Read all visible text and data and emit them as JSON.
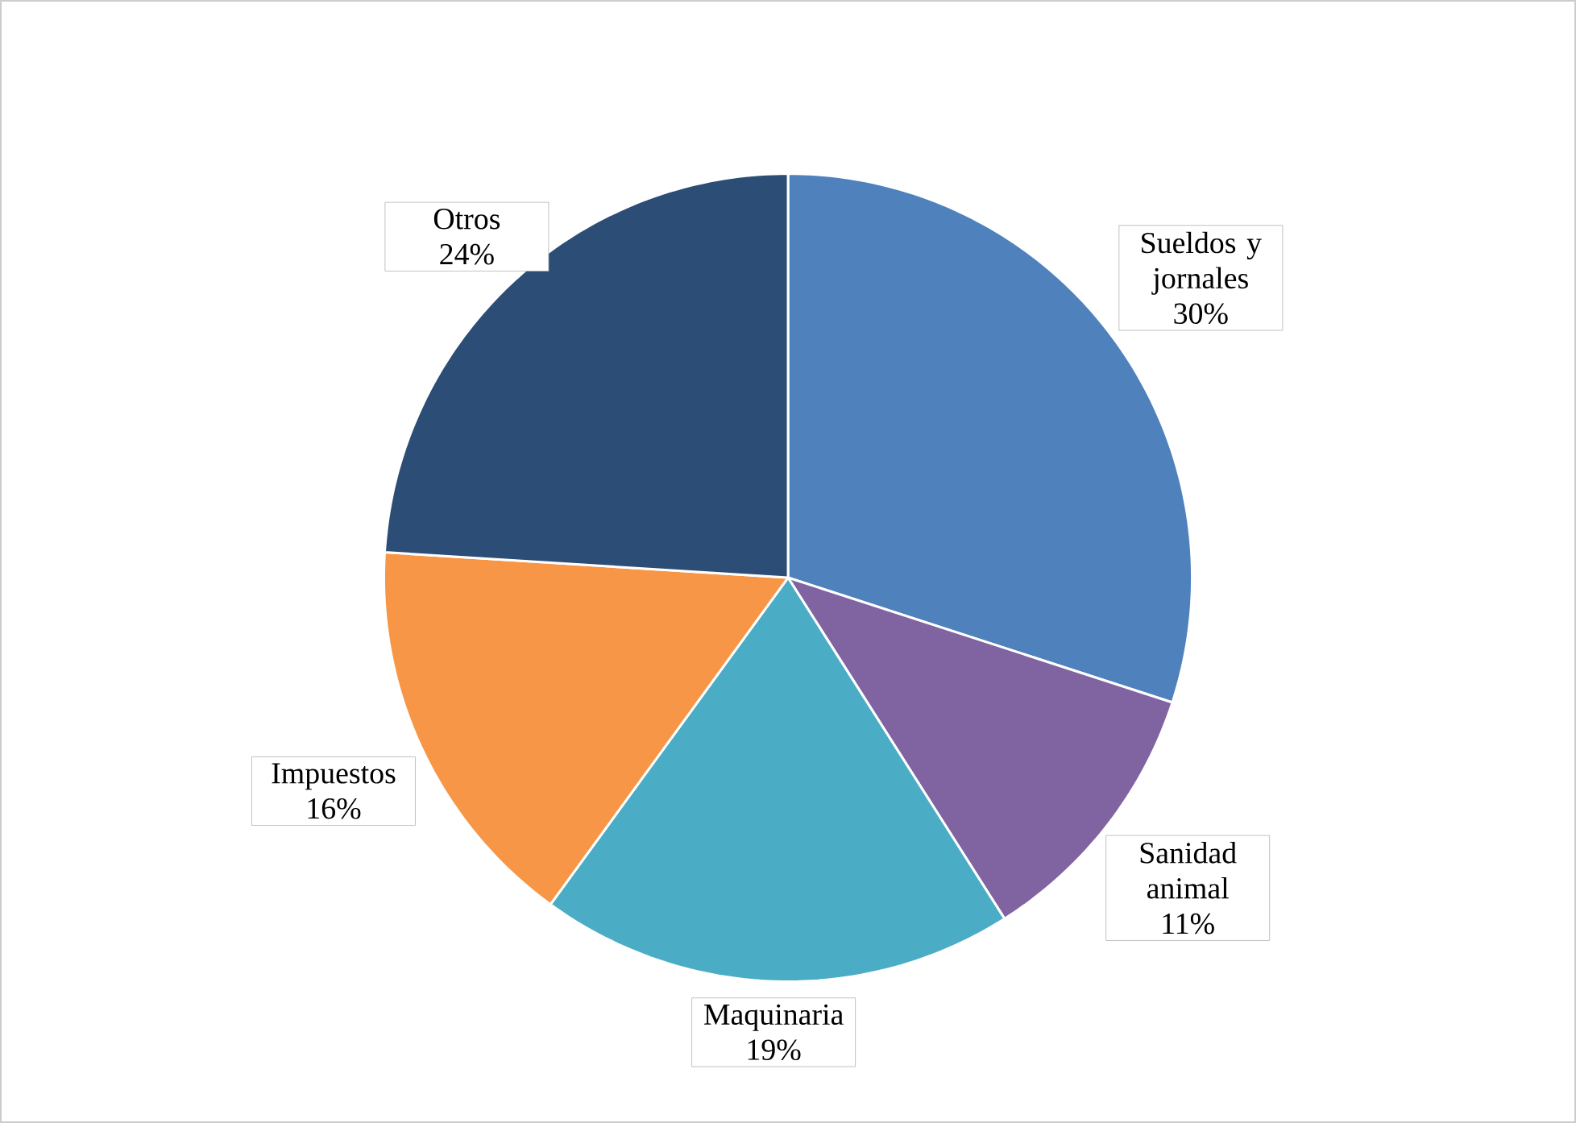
{
  "chart_data": {
    "type": "pie",
    "categories": [
      "Sueldos y jornales",
      "Sanidad animal",
      "Maquinaria",
      "Impuestos",
      "Otros"
    ],
    "values": [
      30,
      11,
      19,
      16,
      24
    ],
    "value_labels": [
      "30%",
      "11%",
      "19%",
      "16%",
      "24%"
    ],
    "colors": [
      "#4f81bd",
      "#8064a2",
      "#4bacc6",
      "#f79646",
      "#2c4d75"
    ]
  }
}
